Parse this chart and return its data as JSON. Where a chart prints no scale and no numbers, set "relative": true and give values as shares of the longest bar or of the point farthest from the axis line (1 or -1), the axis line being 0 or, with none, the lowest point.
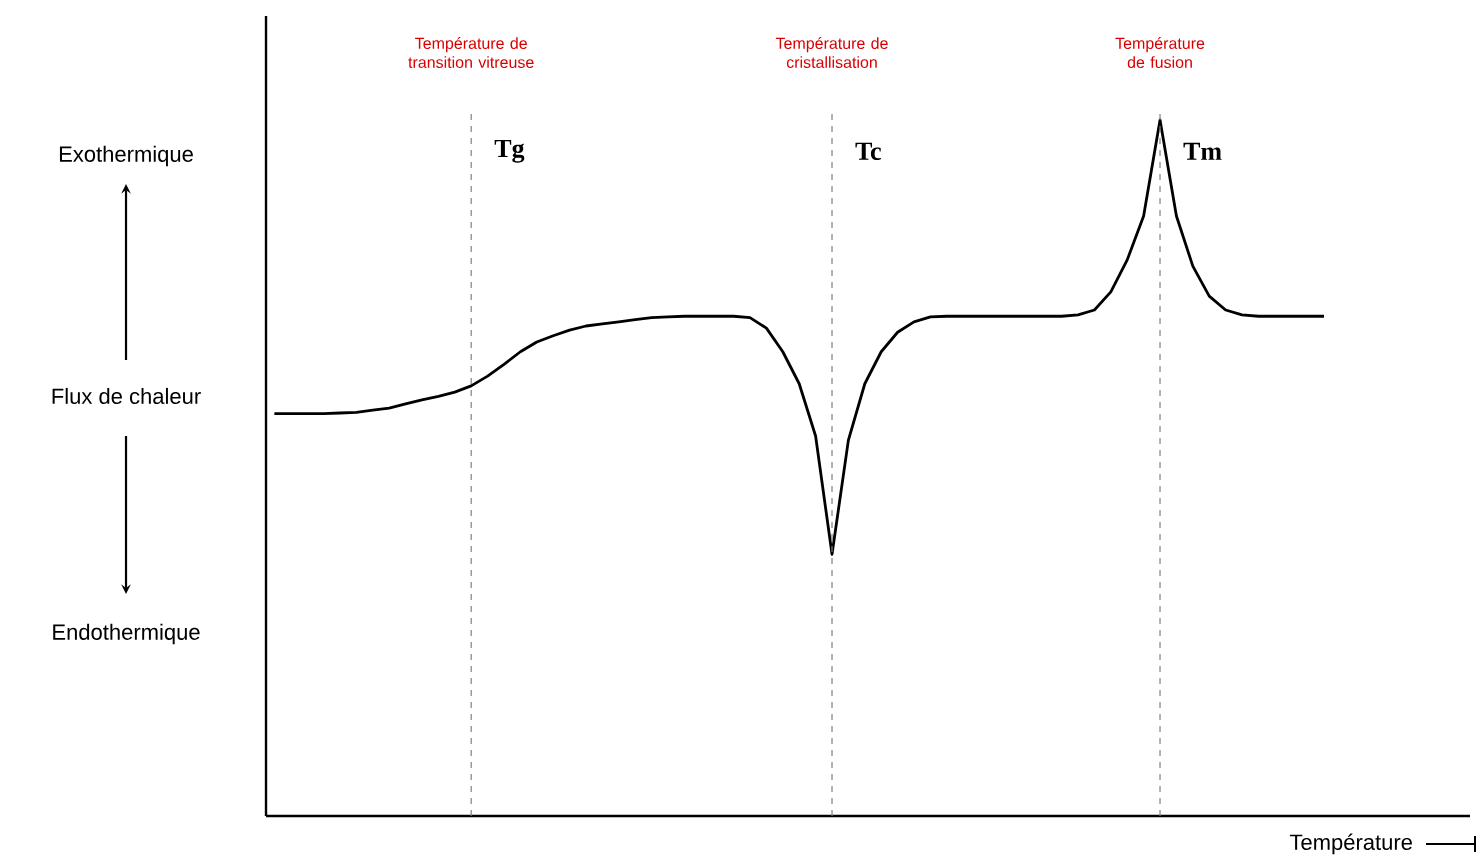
{
  "chart_data": {
    "type": "line",
    "relative": true,
    "ylabel": "Flux de chaleur",
    "xlabel": "Température",
    "annotations": [
      "Exothermique",
      "Endothermique",
      "Température de transition vitreuse",
      "Tg",
      "Température de cristallisation",
      "Tc",
      "Température de fusion",
      "Tm"
    ],
    "categories": [
      null,
      null,
      null,
      null,
      null,
      null,
      null,
      null,
      null,
      null,
      null,
      null,
      null,
      null,
      null,
      null,
      null,
      null,
      null,
      null,
      null,
      null,
      null,
      null,
      null,
      null,
      null,
      null,
      null,
      null,
      null,
      null,
      null,
      null,
      null,
      null,
      null,
      null,
      null,
      null,
      null,
      null,
      null,
      null,
      null,
      null,
      null,
      null,
      null,
      null,
      null,
      null,
      null,
      null,
      null,
      null,
      null,
      null,
      null,
      null,
      null,
      null,
      null,
      null,
      null
    ],
    "series": [
      {
        "color": "#000000",
        "values": [
          0.578,
          0.578,
          0.578,
          0.578,
          0.579,
          0.58,
          0.583,
          0.586,
          0.592,
          0.598,
          0.603,
          0.609,
          0.618,
          0.632,
          0.649,
          0.667,
          0.681,
          0.69,
          0.698,
          0.704,
          0.707,
          0.71,
          0.713,
          0.716,
          0.717,
          0.718,
          0.718,
          0.718,
          0.718,
          0.716,
          0.701,
          0.667,
          0.621,
          0.546,
          0.376,
          0.54,
          0.621,
          0.667,
          0.695,
          0.71,
          0.717,
          0.718,
          0.718,
          0.718,
          0.718,
          0.718,
          0.718,
          0.718,
          0.718,
          0.72,
          0.727,
          0.753,
          0.799,
          0.862,
          1,
          0.862,
          0.79,
          0.747,
          0.727,
          0.72,
          0.718,
          0.718,
          0.718,
          0.718,
          0.718
        ]
      }
    ],
    "marker": "none",
    "line_style": "solid",
    "grid": "x"
  }
}
